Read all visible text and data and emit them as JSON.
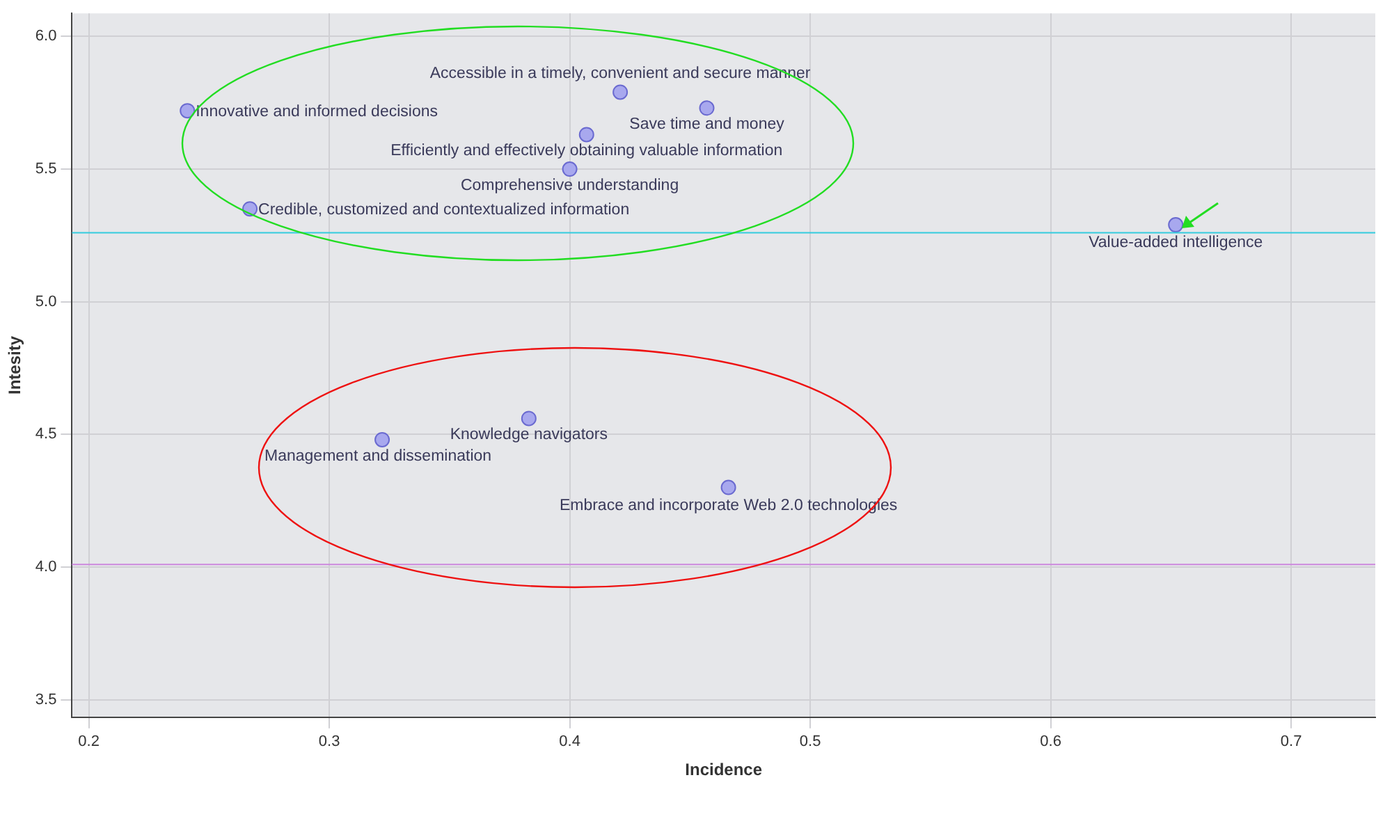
{
  "chart_data": {
    "type": "scatter",
    "xlabel": "Incidence",
    "ylabel": "Intesity",
    "x": [
      0.241,
      0.421,
      0.457,
      0.407,
      0.4,
      0.267,
      0.652,
      0.383,
      0.322,
      0.466
    ],
    "series": [
      {
        "color": "#a8a8ee",
        "values": [
          5.72,
          5.79,
          5.73,
          5.63,
          5.5,
          5.35,
          5.29,
          4.56,
          4.48,
          4.3
        ],
        "value_labels": [
          "Innovative and informed decisions",
          "Accessible in a timely, convenient and secure manner",
          "Save time and money",
          "Efficiently and effectively obtaining valuable information",
          "Comprehensive understanding",
          "Credible, customized and contextualized information",
          "Value-added intelligence",
          "Knowledge navigators",
          "Management and dissemination",
          "Embrace and incorporate Web 2.0 technologies"
        ]
      }
    ],
    "xlim": [
      0.193,
      0.735
    ],
    "xticks": [
      0.2,
      0.3,
      0.4,
      0.5,
      0.6,
      0.7
    ],
    "ylim": [
      3.434,
      6.087
    ],
    "yticks": [
      3.5,
      {
        "value": 4,
        "label": "4.0"
      },
      4.5,
      {
        "value": 5,
        "label": "5.0"
      },
      5.5,
      {
        "value": 6,
        "label": "6.0"
      }
    ],
    "ref_lines": [
      {
        "axis": "y",
        "value": 5.26,
        "color": "#33ccdd"
      },
      {
        "axis": "y",
        "value": 4.01,
        "color": "#cc88dd"
      }
    ],
    "grid": true,
    "marker": "circle",
    "legend": false
  }
}
